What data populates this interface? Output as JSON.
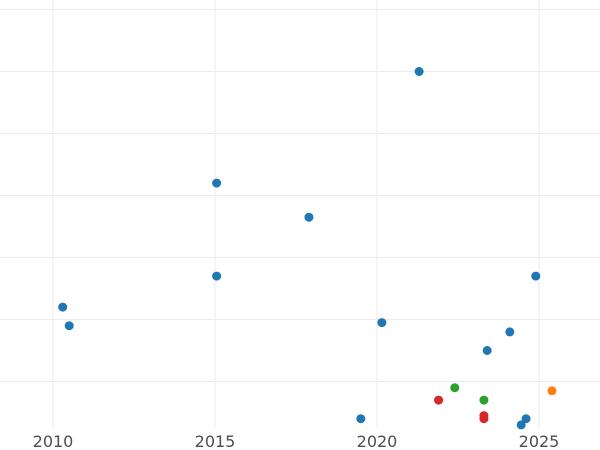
{
  "chart_data": {
    "type": "scatter",
    "title": "",
    "xlabel": "",
    "ylabel": "",
    "xlim": [
      2008.3,
      2026.8
    ],
    "ylim": [
      0,
      14
    ],
    "grid": true,
    "x_ticks": [
      2010,
      2015,
      2020,
      2025
    ],
    "y_gridlines": [
      1.5,
      3.5,
      5.5,
      7.5,
      9.5,
      11.5,
      13.5
    ],
    "series": [
      {
        "color": "#1f77b4",
        "points": [
          {
            "x": 2010.3,
            "y": 3.9
          },
          {
            "x": 2010.5,
            "y": 3.3
          },
          {
            "x": 2015.05,
            "y": 7.9
          },
          {
            "x": 2015.05,
            "y": 4.9
          },
          {
            "x": 2017.9,
            "y": 6.8
          },
          {
            "x": 2019.5,
            "y": 0.3
          },
          {
            "x": 2020.15,
            "y": 3.4
          },
          {
            "x": 2021.3,
            "y": 11.5
          },
          {
            "x": 2023.4,
            "y": 2.5
          },
          {
            "x": 2024.1,
            "y": 3.1
          },
          {
            "x": 2024.45,
            "y": 0.1
          },
          {
            "x": 2024.6,
            "y": 0.3
          },
          {
            "x": 2024.9,
            "y": 4.9
          }
        ]
      },
      {
        "color": "#ff7f0e",
        "points": [
          {
            "x": 2025.4,
            "y": 1.2
          }
        ]
      },
      {
        "color": "#2ca02c",
        "points": [
          {
            "x": 2022.4,
            "y": 1.3
          },
          {
            "x": 2023.3,
            "y": 0.9
          }
        ]
      },
      {
        "color": "#d62728",
        "points": [
          {
            "x": 2021.9,
            "y": 0.9
          },
          {
            "x": 2023.3,
            "y": 0.4
          },
          {
            "x": 2023.3,
            "y": 0.3
          }
        ]
      }
    ]
  }
}
